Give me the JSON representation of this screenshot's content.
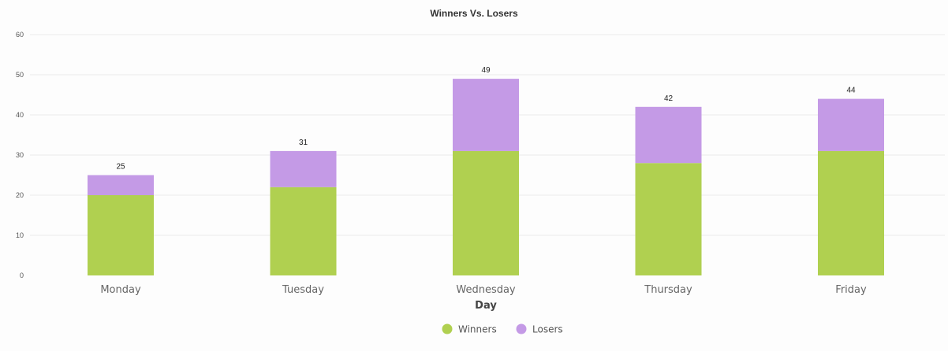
{
  "chart_data": {
    "type": "bar",
    "stacked": true,
    "title": "Winners Vs. Losers",
    "xlabel": "Day",
    "ylabel": "",
    "categories": [
      "Monday",
      "Tuesday",
      "Wednesday",
      "Thursday",
      "Friday"
    ],
    "series": [
      {
        "name": "Winners",
        "values": [
          20,
          22,
          31,
          28,
          31
        ],
        "color": "#b0d050"
      },
      {
        "name": "Losers",
        "values": [
          5,
          9,
          18,
          14,
          13
        ],
        "color": "#c49ae6"
      }
    ],
    "totals": [
      "25",
      "31",
      "49",
      "42",
      "44"
    ],
    "ylim": [
      0,
      60
    ],
    "yticks": [
      "0",
      "10",
      "20",
      "30",
      "40",
      "50",
      "60"
    ],
    "grid": true,
    "legend_position": "bottom"
  }
}
